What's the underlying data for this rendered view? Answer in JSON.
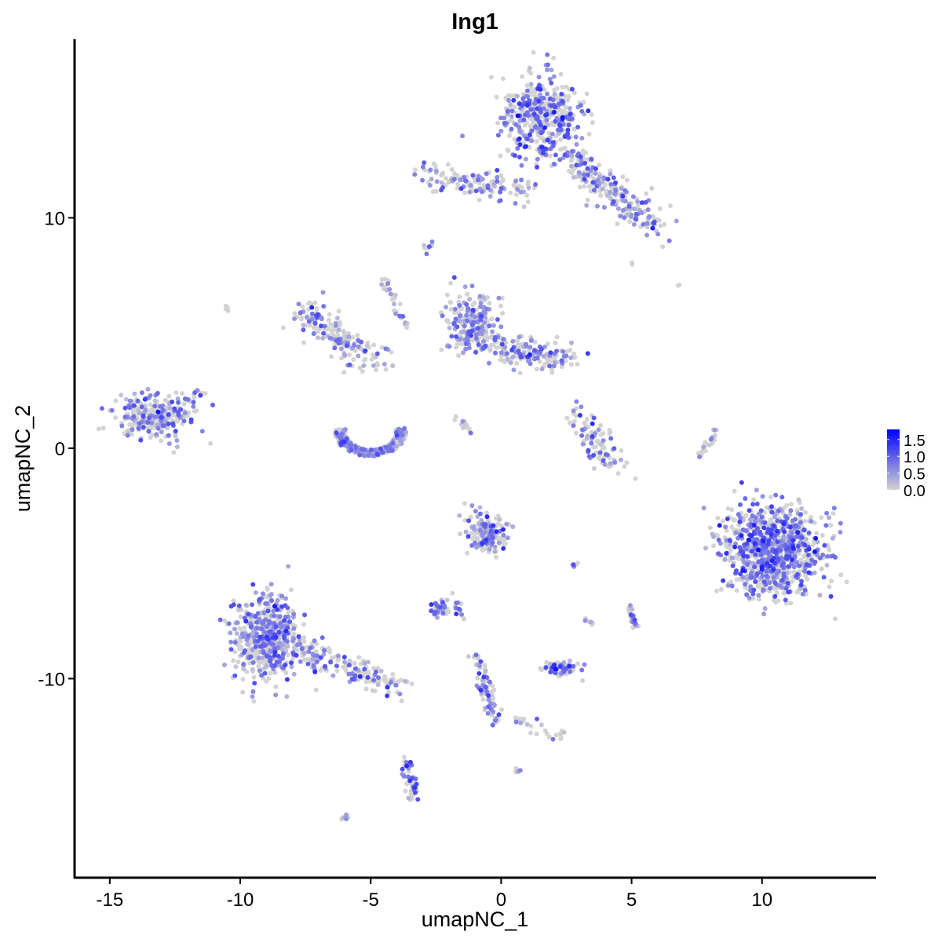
{
  "chart_data": {
    "type": "scatter",
    "title": "Ing1",
    "xlabel": "umapNC_1",
    "ylabel": "umapNC_2",
    "xlim": [
      -16.35,
      14.37
    ],
    "ylim": [
      -18.64,
      17.75
    ],
    "xticks": [
      -15,
      -10,
      -5,
      0,
      5,
      10
    ],
    "yticks": [
      -10,
      0,
      10
    ],
    "grid": false,
    "legend": {
      "placement": "right",
      "ticks": [
        "1.5",
        "1.0",
        "0.5",
        "0.0"
      ],
      "tick_values": [
        1.5,
        1.0,
        0.5,
        0.0
      ],
      "range": [
        0,
        1.8
      ],
      "low_color": "#d3d3d3",
      "high_color": "#0000ff"
    },
    "clusters": [
      {
        "shape": "blob",
        "center": [
          1.57,
          14.3
        ],
        "spread": [
          0.95,
          1.1
        ],
        "n": 420,
        "expr": 0.55
      },
      {
        "shape": "line",
        "from": [
          2.4,
          12.8
        ],
        "to": [
          5.9,
          9.6
        ],
        "spread": 0.35,
        "n": 220,
        "expr": 0.45
      },
      {
        "shape": "line",
        "from": [
          -2.95,
          11.9
        ],
        "to": [
          1.0,
          11.1
        ],
        "spread": 0.3,
        "n": 130,
        "expr": 0.4
      },
      {
        "shape": "line",
        "from": [
          -7.6,
          5.8
        ],
        "to": [
          -4.8,
          3.7
        ],
        "spread": 0.35,
        "n": 170,
        "expr": 0.4
      },
      {
        "shape": "blob",
        "center": [
          -1.15,
          5.4
        ],
        "spread": [
          0.6,
          0.8
        ],
        "n": 220,
        "expr": 0.45
      },
      {
        "shape": "line",
        "from": [
          -0.5,
          4.4
        ],
        "to": [
          2.6,
          3.9
        ],
        "spread": 0.35,
        "n": 170,
        "expr": 0.45
      },
      {
        "shape": "ring",
        "center": [
          -5.0,
          0.7
        ],
        "spread": [
          1.3,
          1.0
        ],
        "n": 320,
        "expr": 0.35
      },
      {
        "shape": "blob",
        "center": [
          -13.3,
          1.3
        ],
        "spread": [
          0.85,
          0.6
        ],
        "n": 260,
        "expr": 0.5
      },
      {
        "shape": "line",
        "from": [
          -12.3,
          1.2
        ],
        "to": [
          -11.4,
          2.8
        ],
        "spread": 0.15,
        "n": 20,
        "expr": 0.4
      },
      {
        "shape": "line",
        "from": [
          3.0,
          1.3
        ],
        "to": [
          4.4,
          -0.8
        ],
        "spread": 0.3,
        "n": 90,
        "expr": 0.5
      },
      {
        "shape": "blob",
        "center": [
          10.45,
          -4.5
        ],
        "spread": [
          1.15,
          1.2
        ],
        "n": 950,
        "expr": 0.55
      },
      {
        "shape": "blob",
        "center": [
          -9.0,
          -8.3
        ],
        "spread": [
          0.75,
          1.2
        ],
        "n": 520,
        "expr": 0.5
      },
      {
        "shape": "line",
        "from": [
          -8.0,
          -8.6
        ],
        "to": [
          -3.8,
          -10.4
        ],
        "spread": 0.3,
        "n": 170,
        "expr": 0.45
      },
      {
        "shape": "blob",
        "center": [
          -0.55,
          -3.8
        ],
        "spread": [
          0.45,
          0.55
        ],
        "n": 170,
        "expr": 0.4
      },
      {
        "shape": "blob",
        "center": [
          2.3,
          -9.6
        ],
        "spread": [
          0.4,
          0.2
        ],
        "n": 90,
        "expr": 0.5
      },
      {
        "shape": "blob",
        "center": [
          -2.35,
          -6.9
        ],
        "spread": [
          0.3,
          0.2
        ],
        "n": 40,
        "expr": 0.45
      },
      {
        "shape": "line",
        "from": [
          -3.6,
          -13.6
        ],
        "to": [
          -3.4,
          -15.2
        ],
        "spread": 0.12,
        "n": 50,
        "expr": 0.5
      },
      {
        "shape": "line",
        "from": [
          -0.9,
          -9.0
        ],
        "to": [
          -0.2,
          -12.0
        ],
        "spread": 0.15,
        "n": 70,
        "expr": 0.4
      },
      {
        "shape": "line",
        "from": [
          0.6,
          -11.7
        ],
        "to": [
          2.4,
          -12.6
        ],
        "spread": 0.15,
        "n": 25,
        "expr": 0.4
      },
      {
        "shape": "line",
        "from": [
          -2.9,
          8.6
        ],
        "to": [
          -2.7,
          8.9
        ],
        "spread": 0.08,
        "n": 10,
        "expr": 0.4
      },
      {
        "shape": "line",
        "from": [
          4.9,
          -7.0
        ],
        "to": [
          5.2,
          -7.8
        ],
        "spread": 0.1,
        "n": 25,
        "expr": 0.5
      },
      {
        "shape": "line",
        "from": [
          7.6,
          -0.5
        ],
        "to": [
          8.3,
          0.9
        ],
        "spread": 0.08,
        "n": 20,
        "expr": 0.2
      },
      {
        "shape": "line",
        "from": [
          -4.5,
          7.4
        ],
        "to": [
          -3.6,
          5.2
        ],
        "spread": 0.1,
        "n": 30,
        "expr": 0.3
      },
      {
        "shape": "line",
        "from": [
          -1.8,
          1.4
        ],
        "to": [
          -1.1,
          0.7
        ],
        "spread": 0.08,
        "n": 15,
        "expr": 0.3
      },
      {
        "shape": "line",
        "from": [
          -1.5,
          -7.6
        ],
        "to": [
          -1.8,
          -6.3
        ],
        "spread": 0.08,
        "n": 12,
        "expr": 0.5
      },
      {
        "shape": "line",
        "from": [
          -6.1,
          -16.1
        ],
        "to": [
          -5.9,
          -16.0
        ],
        "spread": 0.05,
        "n": 6,
        "expr": 0.6
      },
      {
        "shape": "line",
        "from": [
          0.6,
          -14.0
        ],
        "to": [
          0.7,
          -14.1
        ],
        "spread": 0.05,
        "n": 5,
        "expr": 0.4
      },
      {
        "shape": "line",
        "from": [
          2.7,
          -5.1
        ],
        "to": [
          3.0,
          -5.0
        ],
        "spread": 0.05,
        "n": 6,
        "expr": 0.5
      },
      {
        "shape": "line",
        "from": [
          3.2,
          -7.3
        ],
        "to": [
          3.5,
          -7.6
        ],
        "spread": 0.06,
        "n": 8,
        "expr": 0.4
      },
      {
        "shape": "line",
        "from": [
          -10.6,
          6.2
        ],
        "to": [
          -10.5,
          6.0
        ],
        "spread": 0.04,
        "n": 4,
        "expr": 0.0
      },
      {
        "shape": "line",
        "from": [
          6.8,
          7.1
        ],
        "to": [
          6.8,
          7.1
        ],
        "spread": 0.03,
        "n": 2,
        "expr": 0.0
      },
      {
        "shape": "line",
        "from": [
          5.0,
          8.0
        ],
        "to": [
          5.0,
          8.0
        ],
        "spread": 0.03,
        "n": 2,
        "expr": 0.3
      }
    ]
  }
}
